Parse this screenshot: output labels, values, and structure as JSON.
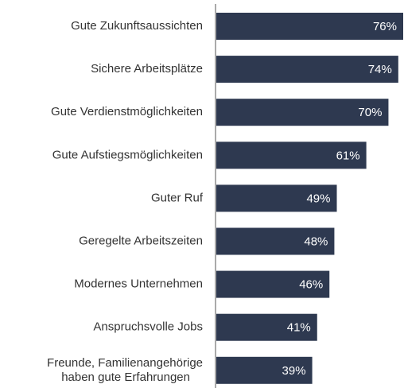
{
  "chart_data": {
    "type": "barh",
    "categories": [
      "Gute Zukunftsaussichten",
      "Sichere Arbeitsplätze",
      "Gute Verdienstmöglichkeiten",
      "Gute Aufstiegsmöglichkeiten",
      "Guter Ruf",
      "Geregelte Arbeitszeiten",
      "Modernes Unternehmen",
      "Anspruchsvolle Jobs",
      "Freunde, Familienangehörige\nhaben gute Erfahrungen"
    ],
    "values": [
      76,
      74,
      70,
      61,
      49,
      48,
      46,
      41,
      39
    ],
    "value_labels": [
      "76%",
      "74%",
      "70%",
      "61%",
      "49%",
      "48%",
      "46%",
      "41%",
      "39%"
    ],
    "color": "#2e3950"
  }
}
